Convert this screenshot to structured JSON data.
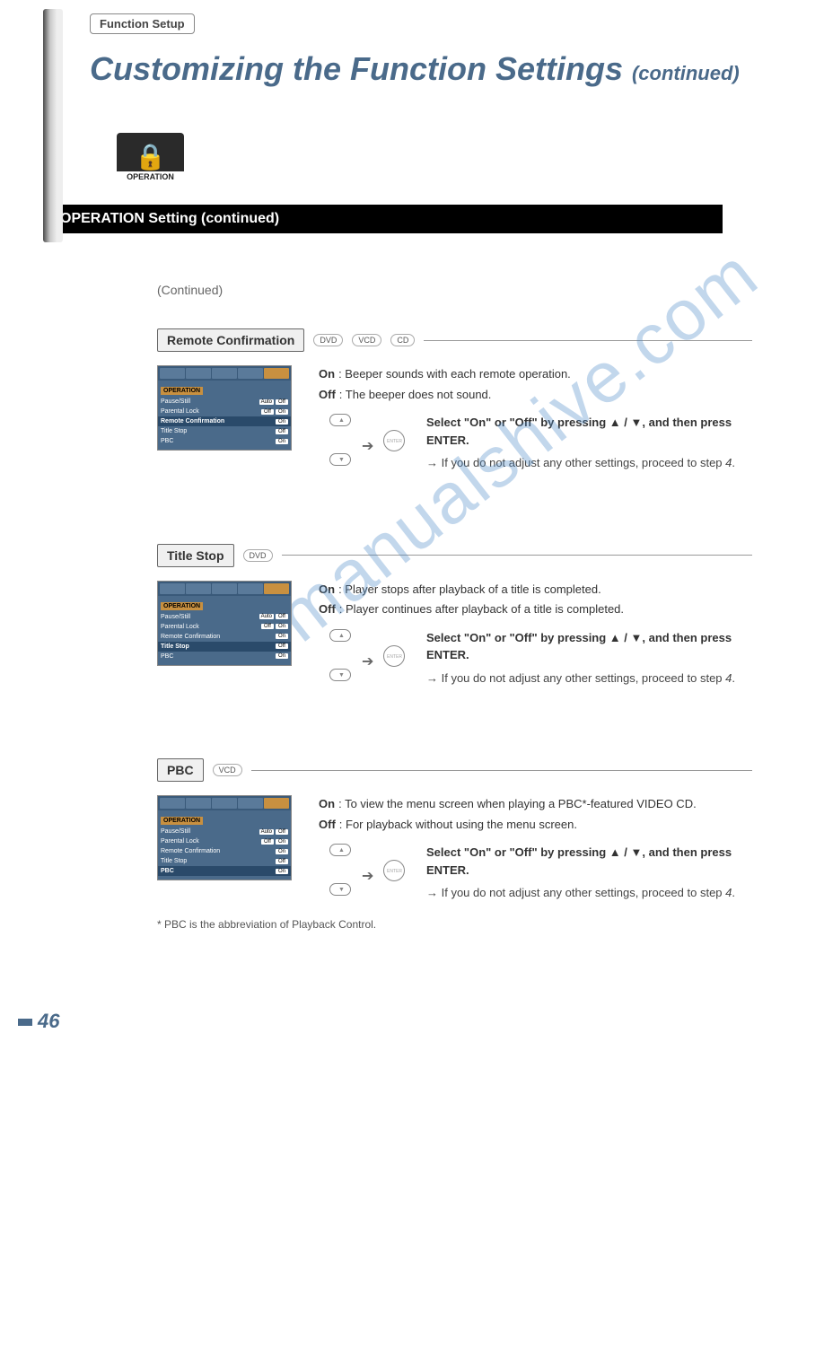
{
  "header": {
    "breadcrumb": "Function Setup",
    "title_main": "Customizing the Function Settings",
    "title_cont": "(continued)",
    "icon_label": "OPERATION"
  },
  "section_bar": "OPERATION Setting (continued)",
  "continued_label": "(Continued)",
  "menu_panel": {
    "heading": "OPERATION",
    "rows": [
      {
        "label": "Pause/Still",
        "v1": "Auto",
        "v2": "Off"
      },
      {
        "label": "Parental Lock",
        "v1": "Off",
        "v2": "On"
      },
      {
        "label": "Remote Confirmation",
        "v1": "On",
        "v2": ""
      },
      {
        "label": "Title Stop",
        "v1": "Off",
        "v2": ""
      },
      {
        "label": "PBC",
        "v1": "On",
        "v2": ""
      }
    ]
  },
  "settings": [
    {
      "name": "Remote Confirmation",
      "discs": [
        "DVD",
        "VCD",
        "CD"
      ],
      "highlight_row": 2,
      "on_text": "Beeper sounds with each remote operation.",
      "off_text": "The beeper does not sound.",
      "instr_main": "Select \"On\" or \"Off\" by pressing ▲ / ▼, and then press ENTER.",
      "instr_sub": "→ If you do not adjust any other settings, proceed to step 4.",
      "footnote": ""
    },
    {
      "name": "Title Stop",
      "discs": [
        "DVD"
      ],
      "highlight_row": 3,
      "on_text": "Player stops after playback of a title is completed.",
      "off_text": "Player continues after playback of a title is completed.",
      "instr_main": "Select \"On\" or \"Off\" by pressing ▲ / ▼, and then press ENTER.",
      "instr_sub": "→ If you do not adjust any other settings, proceed to step 4.",
      "footnote": ""
    },
    {
      "name": "PBC",
      "discs": [
        "VCD"
      ],
      "highlight_row": 4,
      "on_text": "To view the menu screen when playing a PBC*-featured VIDEO CD.",
      "off_text": "For playback without using the menu screen.",
      "instr_main": "Select \"On\" or \"Off\" by pressing ▲ / ▼, and then press ENTER.",
      "instr_sub": "→ If you do not adjust any other settings, proceed to step 4.",
      "footnote": "* PBC is the abbreviation of Playback Control."
    }
  ],
  "page_number": "46",
  "watermark": "manualshive.com",
  "step_ref_italic": "4",
  "colors": {
    "title": "#4a6a8a",
    "bar_bg": "#000000",
    "bar_fg": "#ffffff",
    "menu_bg": "#4a6a8a",
    "highlight": "#c89040",
    "watermark": "rgba(80,140,200,0.35)"
  }
}
